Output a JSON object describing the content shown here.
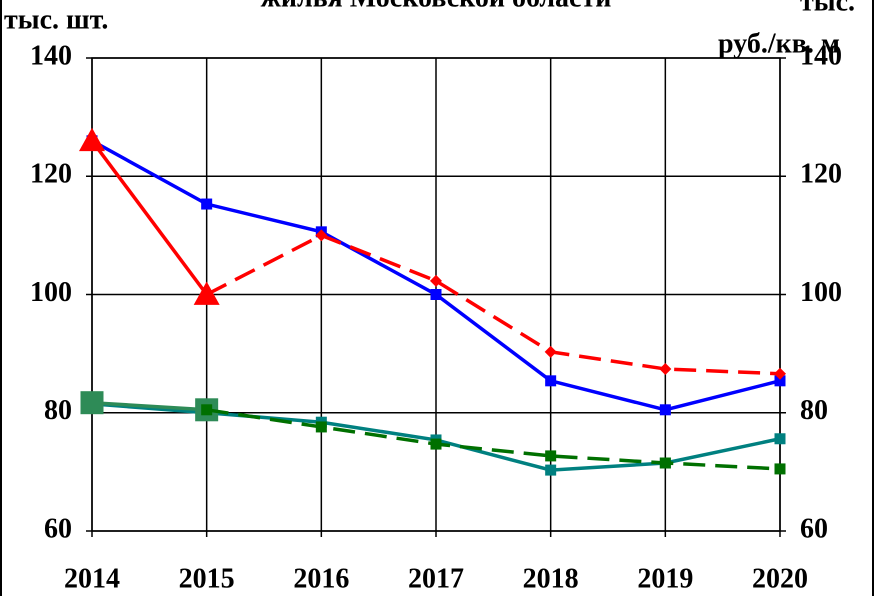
{
  "chart_data": {
    "type": "line",
    "title": "жилья Московской области",
    "y_label": "тыс. шт.",
    "y2_label": [
      "тыс.",
      "руб./кв. м"
    ],
    "categories": [
      "2014",
      "2015",
      "2016",
      "2017",
      "2018",
      "2019",
      "2020"
    ],
    "ylim": [
      60,
      140
    ],
    "yticks": [
      60,
      80,
      100,
      120,
      140
    ],
    "y2lim": [
      60,
      140
    ],
    "y2ticks": [
      60,
      80,
      100,
      120,
      140
    ],
    "grid": true,
    "series": [
      {
        "color": "#0000ff",
        "marker": "square",
        "marker_size": 10,
        "dash": false,
        "values": [
          126,
          115.3,
          110.6,
          100,
          85.4,
          80.5,
          85.4
        ]
      },
      {
        "color": "#008080",
        "marker": "square",
        "marker_size": 10,
        "dash": false,
        "values": [
          81.5,
          80,
          78.4,
          75.4,
          70.3,
          71.5,
          75.6
        ]
      },
      {
        "color": "#ff0000",
        "marker": "triangle",
        "marker_size": 26,
        "dash": false,
        "axis": "y2",
        "values": [
          126,
          100,
          null,
          null,
          null,
          null,
          null
        ]
      },
      {
        "color": "#ff0000",
        "marker": "diamond",
        "marker_size": 12,
        "dash": true,
        "axis": "y2",
        "values": [
          null,
          100,
          110,
          102.3,
          90.3,
          87.4,
          86.6
        ]
      },
      {
        "color": "#2e8b57",
        "marker": "square",
        "marker_size": 22,
        "dash": false,
        "axis": "y2",
        "values": [
          81.7,
          80.5,
          null,
          null,
          null,
          null,
          null
        ]
      },
      {
        "color": "#007000",
        "marker": "square",
        "marker_size": 10,
        "dash": true,
        "axis": "y2",
        "values": [
          null,
          80.5,
          77.6,
          74.7,
          72.7,
          71.5,
          70.5
        ]
      }
    ]
  }
}
